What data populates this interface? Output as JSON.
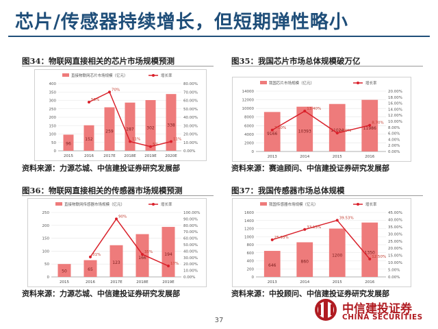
{
  "page": {
    "title": "芯片/传感器持续增长，但短期弹性略小",
    "page_number": "37",
    "logo_cn": "中信建投证券",
    "logo_en": "CHINA SECURITIES"
  },
  "colors": {
    "bar": "#ee7b7b",
    "line": "#d9202a",
    "title": "#1f4e79",
    "brand": "#b01c22"
  },
  "figures": [
    {
      "title": "图34：物联网直接相关的芯片市场规模预测",
      "source": "资料来源：力源芯城、中信建投证券研究发展部"
    },
    {
      "title": "图35：我国芯片市场总体规模破万亿",
      "source": "资料来源：赛迪顾问、中信建投证券研究发展部"
    },
    {
      "title": "图36：物联网直接相关的传感器市场规模预测",
      "source": "资料来源：力源芯城、中信建投证券研究发展部"
    },
    {
      "title": "图37：我国传感器市场总体规模",
      "source": "资料来源：中投顾问、中信建投证券研究发展部"
    }
  ],
  "chart_data": [
    {
      "type": "bar",
      "categories": [
        "2015",
        "2016",
        "2017E",
        "2018E",
        "2019E",
        "2020E"
      ],
      "series": [
        {
          "name": "直接物联网芯片市场规模（亿元）",
          "type": "bar",
          "axis": "left",
          "values": [
            96,
            152,
            259,
            287,
            302,
            338
          ],
          "labels": [
            "96",
            "152",
            "259",
            "287",
            "302",
            "338"
          ]
        },
        {
          "name": "增长率",
          "type": "line",
          "axis": "right",
          "values": [
            null,
            58,
            70,
            11,
            5,
            11
          ],
          "labels": [
            "",
            "58%",
            "70%",
            "11%",
            "5%",
            "11%"
          ]
        }
      ],
      "ylim": [
        0,
        400
      ],
      "yticks": [
        "0",
        "50",
        "100",
        "150",
        "200",
        "250",
        "300",
        "350",
        "400"
      ],
      "y2lim": [
        0,
        80
      ],
      "y2ticks": [
        "0.00%",
        "10.00%",
        "20.00%",
        "30.00%",
        "40.00%",
        "50.00%",
        "60.00%",
        "70.00%",
        "80.00%"
      ],
      "legend": "top"
    },
    {
      "type": "bar",
      "categories": [
        "2013",
        "2014",
        "2015",
        "2016"
      ],
      "series": [
        {
          "name": "我国芯片市场规模（亿元）",
          "type": "bar",
          "axis": "left",
          "values": [
            9166,
            10393,
            11024,
            11986
          ],
          "labels": [
            "9166",
            "10393",
            "11024",
            "11986"
          ]
        },
        {
          "name": "增长率",
          "type": "line",
          "axis": "right",
          "values": [
            7.1,
            13.4,
            6.1,
            8.7
          ],
          "labels": [
            "7.10%",
            "13.40%",
            "6.10%",
            "8.70%"
          ]
        }
      ],
      "ylim": [
        0,
        14000
      ],
      "yticks": [
        "0",
        "2000",
        "4000",
        "6000",
        "8000",
        "10000",
        "12000",
        "14000"
      ],
      "y2lim": [
        0,
        20
      ],
      "y2ticks": [
        "0.00%",
        "2.00%",
        "4.00%",
        "6.00%",
        "8.00%",
        "10.00%",
        "12.00%",
        "14.00%",
        "16.00%",
        "18.00%",
        "20.00%"
      ],
      "legend": "top"
    },
    {
      "type": "bar",
      "categories": [
        "2015",
        "2016",
        "2017E",
        "2018E",
        "2019E"
      ],
      "series": [
        {
          "name": "直接物联网传感器市场规模（亿元）",
          "type": "bar",
          "axis": "left",
          "values": [
            50,
            65,
            123,
            166,
            194
          ],
          "labels": [
            "50",
            "65",
            "123",
            "166",
            "194"
          ]
        },
        {
          "name": "增长率",
          "type": "line",
          "axis": "right",
          "values": [
            null,
            31,
            90,
            35,
            17
          ],
          "labels": [
            "",
            "31%",
            "90%",
            "35%",
            "17%"
          ]
        }
      ],
      "ylim": [
        0,
        250
      ],
      "yticks": [
        "0",
        "50",
        "100",
        "150",
        "200",
        "250"
      ],
      "y2lim": [
        0,
        100
      ],
      "y2ticks": [
        "0.00%",
        "10.00%",
        "20.00%",
        "30.00%",
        "40.00%",
        "50.00%",
        "60.00%",
        "70.00%",
        "80.00%",
        "90.00%",
        "100.00%"
      ],
      "legend": "top"
    },
    {
      "type": "bar",
      "categories": [
        "2013",
        "2014",
        "2015",
        "2016"
      ],
      "series": [
        {
          "name": "我国传感器市场规模（亿元）",
          "type": "bar",
          "axis": "left",
          "values": [
            646,
            860,
            1200,
            1350
          ],
          "labels": [
            "646",
            "860",
            "1200",
            "1350"
          ]
        },
        {
          "name": "增长率",
          "type": "line",
          "axis": "right",
          "values": [
            25.93,
            33.13,
            39.53,
            12.5
          ],
          "labels": [
            "25.93%",
            "33.13%",
            "39.53%",
            "12.50%"
          ]
        }
      ],
      "ylim": [
        0,
        1600
      ],
      "yticks": [
        "0",
        "200",
        "400",
        "600",
        "800",
        "1000",
        "1200",
        "1400",
        "1600"
      ],
      "y2lim": [
        0,
        45
      ],
      "y2ticks": [
        "0.00%",
        "5.00%",
        "10.00%",
        "15.00%",
        "20.00%",
        "25.00%",
        "30.00%",
        "35.00%",
        "40.00%",
        "45.00%"
      ],
      "legend": "top"
    }
  ]
}
